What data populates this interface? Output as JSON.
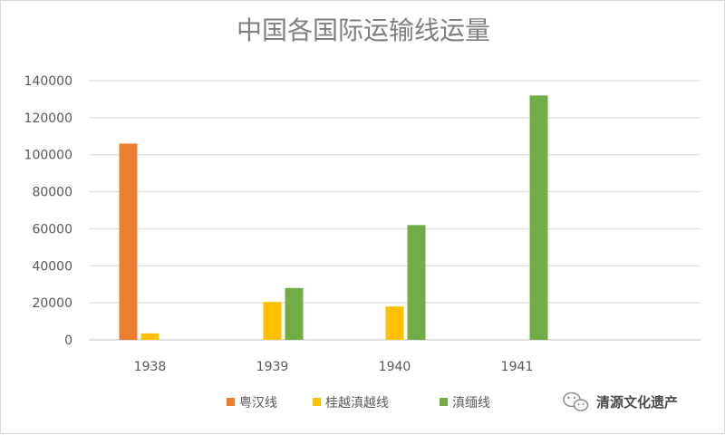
{
  "chart_data": {
    "type": "bar",
    "title": "中国各国际运输线运量",
    "categories": [
      "1938",
      "1939",
      "1940",
      "1941"
    ],
    "series": [
      {
        "name": "粤汉线",
        "color": "#ed7d31",
        "values": [
          106000,
          null,
          null,
          null
        ]
      },
      {
        "name": "桂越滇越线",
        "color": "#ffc000",
        "values": [
          3500,
          20500,
          18000,
          null
        ]
      },
      {
        "name": "滇缅线",
        "color": "#70ad47",
        "values": [
          null,
          28000,
          62000,
          132000
        ]
      }
    ],
    "ylim": [
      0,
      140000
    ],
    "yticks": [
      "0",
      "20000",
      "40000",
      "60000",
      "80000",
      "100000",
      "120000",
      "140000"
    ],
    "xlabel": "",
    "ylabel": "",
    "grid": true,
    "legend_position": "bottom"
  },
  "watermark": {
    "text": "清源文化遗产",
    "icon": "wechat-icon"
  }
}
